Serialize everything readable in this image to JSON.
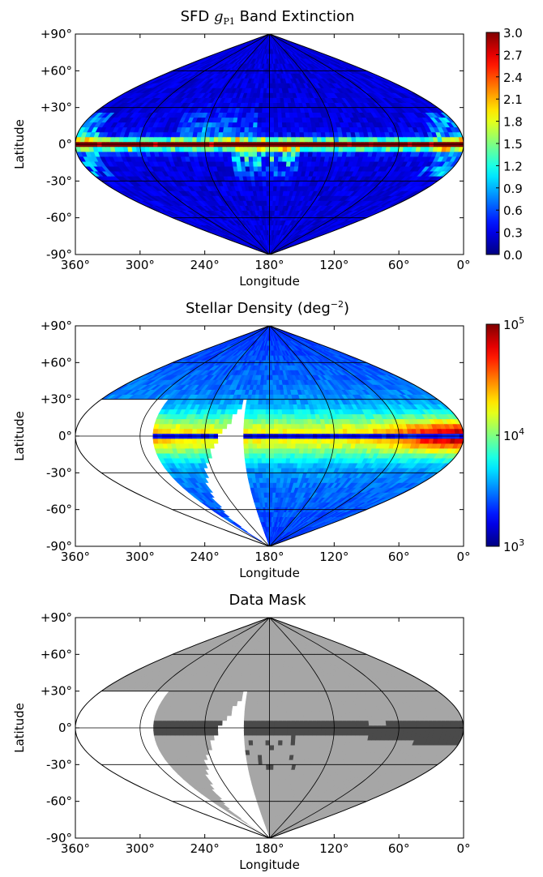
{
  "chart_data": [
    {
      "type": "heatmap",
      "title_prefix": "SFD ",
      "title_math": "g",
      "title_sub": "P1",
      "title_suffix": " Band Extinction",
      "projection": "sinusoidal (Sanson-Flamsteed)",
      "xlabel": "Longitude",
      "ylabel": "Latitude",
      "xticks": [
        "360°",
        "300°",
        "240°",
        "180°",
        "120°",
        "60°",
        "0°"
      ],
      "yticks": [
        "+90°",
        "+60°",
        "+30°",
        "0°",
        "-30°",
        "-60°",
        "-90°"
      ],
      "xlim": [
        360,
        0
      ],
      "ylim": [
        -90,
        90
      ],
      "colormap": "jet",
      "colorbar": {
        "scale": "linear",
        "range": [
          0.0,
          3.0
        ],
        "ticks": [
          "3.0",
          "2.7",
          "2.4",
          "2.1",
          "1.8",
          "1.5",
          "1.2",
          "0.9",
          "0.6",
          "0.3",
          "0.0"
        ]
      },
      "grid": true
    },
    {
      "type": "heatmap",
      "title_prefix": "Stellar Density (deg",
      "title_sup": "−2",
      "title_suffix": ")",
      "projection": "sinusoidal (Sanson-Flamsteed)",
      "xlabel": "Longitude",
      "ylabel": "Latitude",
      "xticks": [
        "360°",
        "300°",
        "240°",
        "180°",
        "120°",
        "60°",
        "0°"
      ],
      "yticks": [
        "+90°",
        "+60°",
        "+30°",
        "0°",
        "-30°",
        "-60°",
        "-90°"
      ],
      "xlim": [
        360,
        0
      ],
      "ylim": [
        -90,
        90
      ],
      "colormap": "jet",
      "colorbar": {
        "scale": "log",
        "range": [
          1000,
          100000
        ],
        "ticks": [
          {
            "base": "10",
            "exp": "5"
          },
          {
            "base": "10",
            "exp": "4"
          },
          {
            "base": "10",
            "exp": "3"
          }
        ]
      },
      "grid": true
    },
    {
      "type": "heatmap",
      "title": "Data Mask",
      "projection": "sinusoidal (Sanson-Flamsteed)",
      "xlabel": "Longitude",
      "ylabel": "Latitude",
      "xticks": [
        "360°",
        "300°",
        "240°",
        "180°",
        "120°",
        "60°",
        "0°"
      ],
      "yticks": [
        "+90°",
        "+60°",
        "+30°",
        "0°",
        "-30°",
        "-60°",
        "-90°"
      ],
      "xlim": [
        360,
        0
      ],
      "ylim": [
        -90,
        90
      ],
      "colors": {
        "unobserved": "#ffffff",
        "observed": "#a6a6a6",
        "masked": "#4a4a4a"
      },
      "grid": true
    }
  ]
}
